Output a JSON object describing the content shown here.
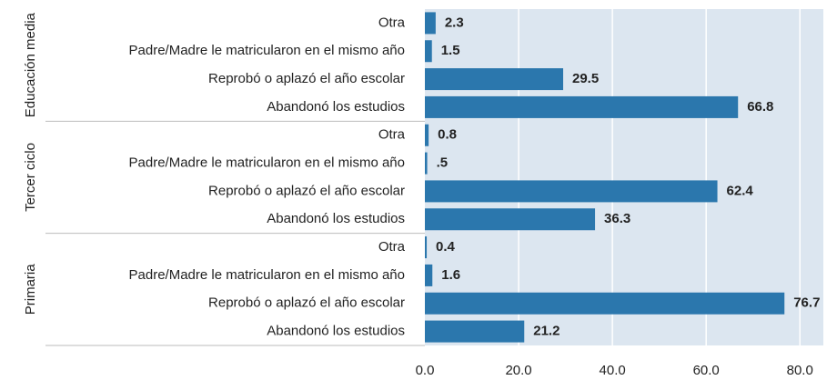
{
  "chart_data": {
    "type": "bar",
    "orientation": "horizontal",
    "color": "#2b77ad",
    "background": "#dce6f0",
    "grid": true,
    "xlim": [
      0,
      85
    ],
    "xticks": [
      {
        "value": 0,
        "label": "0.0"
      },
      {
        "value": 20,
        "label": "20.0"
      },
      {
        "value": 40,
        "label": "40.0"
      },
      {
        "value": 60,
        "label": "60.0"
      },
      {
        "value": 80,
        "label": "80.0"
      }
    ],
    "groups": [
      {
        "name": "Educación media",
        "categories": [
          "Otra",
          "Padre/Madre le matricularon en el mismo año",
          "Reprobó o aplazó el año escolar",
          "Abandonó los estudios"
        ],
        "values": [
          2.3,
          1.5,
          29.5,
          66.8
        ],
        "value_labels": [
          "2.3",
          "1.5",
          "29.5",
          "66.8"
        ]
      },
      {
        "name": "Tercer ciclo",
        "categories": [
          "Otra",
          "Padre/Madre le matricularon en el mismo año",
          "Reprobó o aplazó el año escolar",
          "Abandonó los estudios"
        ],
        "values": [
          0.8,
          0.5,
          62.4,
          36.3
        ],
        "value_labels": [
          "0.8",
          ".5",
          "62.4",
          "36.3"
        ]
      },
      {
        "name": "Primaria",
        "categories": [
          "Otra",
          "Padre/Madre le matricularon en el mismo año",
          "Reprobó o aplazó el año escolar",
          "Abandonó los estudios"
        ],
        "values": [
          0.4,
          1.6,
          76.7,
          21.2
        ],
        "value_labels": [
          "0.4",
          "1.6",
          "76.7",
          "21.2"
        ]
      }
    ]
  }
}
